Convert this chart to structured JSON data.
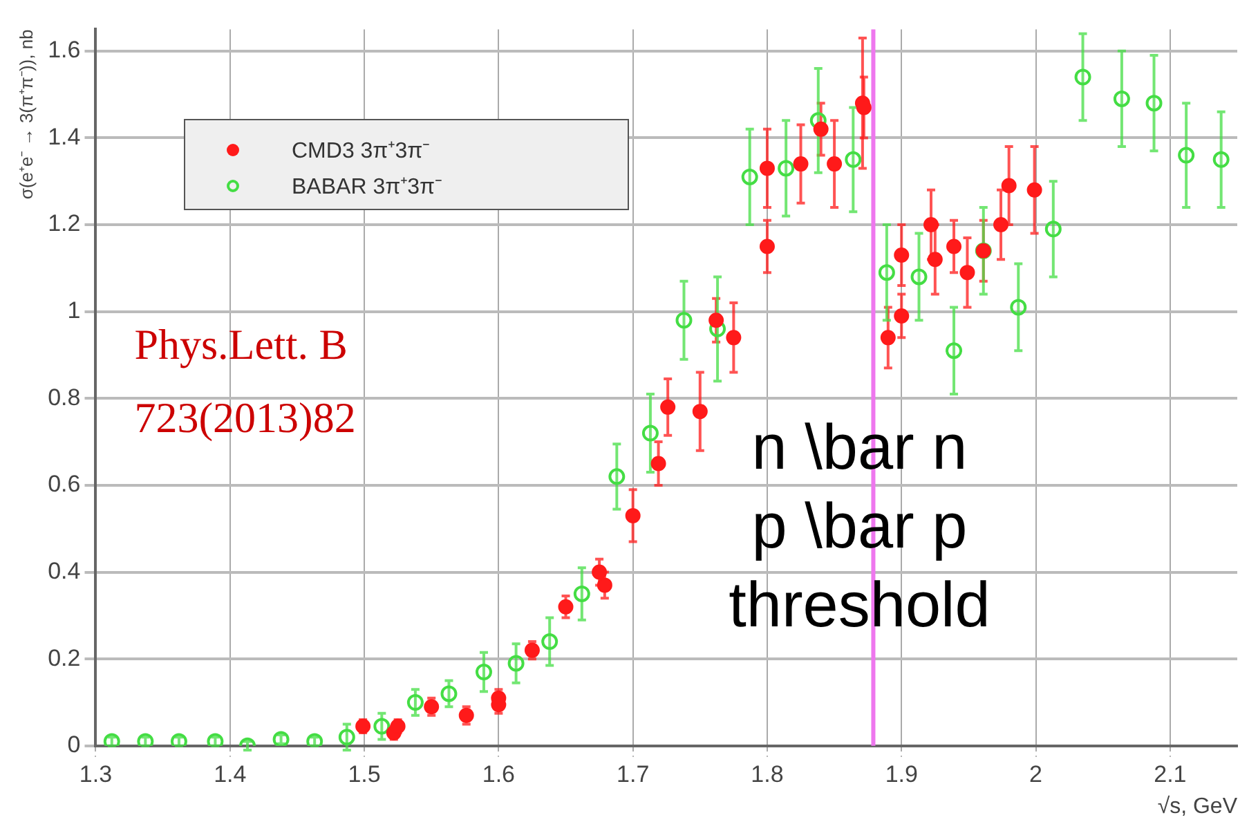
{
  "chart_data": {
    "type": "scatter",
    "xlabel": "√s, GeV",
    "ylabel": "σ(e⁺e⁻ → 3(π⁺π⁻)), nb",
    "xlim": [
      1.3,
      2.15
    ],
    "xticks": [
      1.3,
      1.4,
      1.5,
      1.6,
      1.7,
      1.8,
      1.9,
      2,
      2.1
    ],
    "ylim": [
      0,
      1.65
    ],
    "yticks": [
      0,
      0.2,
      0.4,
      0.6,
      0.8,
      1,
      1.2,
      1.4,
      1.6
    ],
    "grid": true,
    "legend": "top left",
    "marker": "circle",
    "annotations": [
      "Phys.Lett. B\n723(2013)82"
    ],
    "ref_lines": [
      {
        "axis": "x",
        "value": 1.879,
        "label": "n \\bar n\np \\bar p\nthreshold",
        "color": "#ee77ee"
      }
    ],
    "series": [
      {
        "name": "CMD3 3π⁺3π⁻",
        "color": "#ff1a1a",
        "x": [
          1.499,
          1.522,
          1.525,
          1.55,
          1.576,
          1.6,
          1.6,
          1.625,
          1.65,
          1.675,
          1.679,
          1.7,
          1.719,
          1.726,
          1.75,
          1.762,
          1.775,
          1.8,
          1.8,
          1.825,
          1.84,
          1.85,
          1.871,
          1.872,
          1.89,
          1.9,
          1.9,
          1.922,
          1.925,
          1.939,
          1.949,
          1.961,
          1.974,
          1.98,
          1.999
        ],
        "values": [
          0.045,
          0.03,
          0.045,
          0.09,
          0.07,
          0.11,
          0.095,
          0.22,
          0.32,
          0.4,
          0.37,
          0.53,
          0.65,
          0.78,
          0.77,
          0.98,
          0.94,
          1.33,
          1.15,
          1.34,
          1.42,
          1.34,
          1.48,
          1.47,
          0.94,
          1.13,
          0.99,
          1.2,
          1.12,
          1.15,
          1.09,
          1.14,
          1.2,
          1.29,
          1.28
        ],
        "errors": [
          0.015,
          0.015,
          0.015,
          0.02,
          0.02,
          0.02,
          0.02,
          0.02,
          0.025,
          0.03,
          0.03,
          0.06,
          0.05,
          0.065,
          0.09,
          0.05,
          0.08,
          0.09,
          0.06,
          0.09,
          0.06,
          0.1,
          0.15,
          0.07,
          0.07,
          0.07,
          0.05,
          0.08,
          0.08,
          0.06,
          0.08,
          0.07,
          0.08,
          0.09,
          0.1
        ]
      },
      {
        "name": "BABAR 3π⁺3π⁻",
        "color": "#44dd44",
        "x": [
          1.312,
          1.337,
          1.362,
          1.389,
          1.413,
          1.438,
          1.463,
          1.487,
          1.513,
          1.538,
          1.563,
          1.589,
          1.613,
          1.638,
          1.662,
          1.688,
          1.713,
          1.738,
          1.763,
          1.787,
          1.814,
          1.838,
          1.864,
          1.889,
          1.913,
          1.939,
          1.961,
          1.987,
          2.013,
          2.035,
          2.064,
          2.088,
          2.112,
          2.138
        ],
        "values": [
          0.01,
          0.01,
          0.01,
          0.01,
          0,
          0.015,
          0.01,
          0.02,
          0.045,
          0.1,
          0.12,
          0.17,
          0.19,
          0.24,
          0.35,
          0.62,
          0.72,
          0.98,
          0.96,
          1.31,
          1.33,
          1.44,
          1.35,
          1.09,
          1.08,
          0.91,
          1.14,
          1.01,
          1.19,
          1.54,
          1.49,
          1.48,
          1.36,
          1.35
        ],
        "errors": [
          0.01,
          0.01,
          0.01,
          0.01,
          0.01,
          0.01,
          0.01,
          0.03,
          0.03,
          0.03,
          0.03,
          0.045,
          0.045,
          0.055,
          0.06,
          0.075,
          0.09,
          0.09,
          0.12,
          0.11,
          0.11,
          0.12,
          0.12,
          0.11,
          0.1,
          0.1,
          0.1,
          0.1,
          0.11,
          0.1,
          0.11,
          0.11,
          0.12,
          0.11
        ]
      }
    ]
  }
}
